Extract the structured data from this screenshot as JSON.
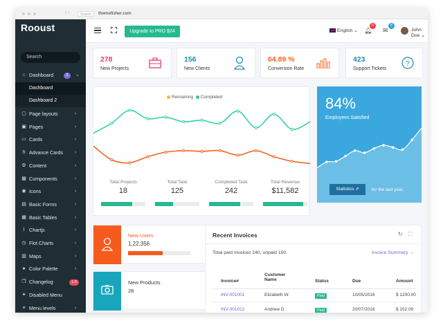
{
  "browser": {
    "url": "themefisher.com",
    "chip": "Search"
  },
  "sidebar": {
    "logo": "Rooust",
    "search_placeholder": "Search",
    "dashboard": {
      "label": "Dashboard",
      "badge": "2"
    },
    "submenu": [
      "Dashboard",
      "Dashboard 2"
    ],
    "items": [
      {
        "label": "Page layouts",
        "icon": "file-icon"
      },
      {
        "label": "Pages",
        "icon": "pages-icon"
      },
      {
        "label": "Cards",
        "icon": "card-icon"
      },
      {
        "label": "Advance Cards",
        "icon": "hand-icon"
      },
      {
        "label": "Content",
        "icon": "content-icon"
      },
      {
        "label": "Components",
        "icon": "grid-icon"
      },
      {
        "label": "Icons",
        "icon": "eye-icon"
      },
      {
        "label": "Basic Forms",
        "icon": "form-icon"
      },
      {
        "label": "Basic Tables",
        "icon": "table-icon"
      },
      {
        "label": "Chartjs",
        "icon": "chart-icon"
      },
      {
        "label": "Flot Charts",
        "icon": "clock-icon"
      },
      {
        "label": "Maps",
        "icon": "map-icon"
      },
      {
        "label": "Color Palette",
        "icon": "brush-icon"
      },
      {
        "label": "Changelog",
        "icon": "copy-icon",
        "badge": "1.0"
      },
      {
        "label": "Disabled Menu",
        "icon": "fire-icon"
      },
      {
        "label": "Menu levels",
        "icon": "menu-icon"
      }
    ]
  },
  "topbar": {
    "upgrade_label": "Upgrade to PRO $24",
    "language": "English",
    "notifications_count": "5",
    "messages_count": "8",
    "user_name": "John Doe"
  },
  "stats": [
    {
      "value": "278",
      "label": "New Projects",
      "color": "#e83e6c"
    },
    {
      "value": "156",
      "label": "New Clients",
      "color": "#1e8fa6"
    },
    {
      "value": "64.89 %",
      "label": "Conversion Rate",
      "color": "#f26522"
    },
    {
      "value": "423",
      "label": "Support Tickets",
      "color": "#1e8fa6"
    }
  ],
  "chart_data": {
    "type": "line",
    "legend": [
      "Remaining",
      "Completed"
    ],
    "series": [
      {
        "name": "Completed",
        "color": "#2fd3a6",
        "values": [
          45,
          58,
          75,
          64,
          66,
          60,
          62,
          58,
          74,
          52,
          70,
          50,
          60
        ]
      },
      {
        "name": "Remaining",
        "color": "#f26522",
        "values": [
          28,
          10,
          6,
          14,
          20,
          22,
          21,
          22,
          16,
          22,
          14,
          8,
          5
        ]
      }
    ]
  },
  "totals": [
    {
      "label": "Total Projects",
      "value": "18",
      "fill": 0.7
    },
    {
      "label": "Total Task",
      "value": "125",
      "fill": 0.4
    },
    {
      "label": "Completed Task",
      "value": "242",
      "fill": 0.7
    },
    {
      "label": "Total Revenue",
      "value": "$11,582",
      "fill": 0.9
    }
  ],
  "employees": {
    "percent": "84%",
    "label": "Employees Satisfied",
    "button": "Statistics",
    "period": "for the last year."
  },
  "employees_chart": {
    "values": [
      26,
      37,
      38,
      48,
      58,
      54,
      62,
      68,
      64,
      60,
      78,
      100
    ]
  },
  "new_users": {
    "title": "New Users",
    "value": "1,22,356",
    "progress": 0.55,
    "color": "#f65b1d"
  },
  "new_products": {
    "title": "New Products",
    "value": "28",
    "color": "#19a6bd"
  },
  "invoices": {
    "title": "Recent Invoices",
    "summary": "Total paid invoices 240, unpaid 150.",
    "summary_link": "Invoice Summary",
    "headers": [
      "Invoice#",
      "Customer Name",
      "Status",
      "Due",
      "Amount"
    ],
    "rows": [
      {
        "id": "INV-001001",
        "customer": "Elizabeth W.",
        "status": "Paid",
        "due": "10/05/2016",
        "amount": "$ 1200.00"
      },
      {
        "id": "INV-001012",
        "customer": "Andrew D.",
        "status": "Paid",
        "due": "20/07/2016",
        "amount": "$ 152.00"
      }
    ]
  }
}
